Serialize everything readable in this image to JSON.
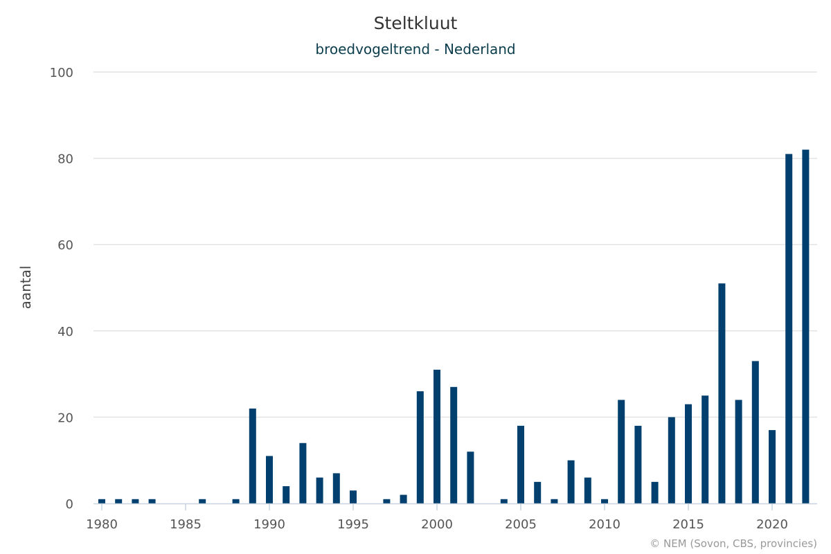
{
  "colors": {
    "bar": "#003f6e"
  },
  "chart_data": {
    "type": "bar",
    "title": "Steltkluut",
    "subtitle": "broedvogeltrend - Nederland",
    "ylabel": "aantal",
    "xlabel": "",
    "ylim": [
      0,
      100
    ],
    "yticks": [
      0,
      20,
      40,
      60,
      80,
      100
    ],
    "xticks": [
      1980,
      1985,
      1990,
      1995,
      2000,
      2005,
      2010,
      2015,
      2020
    ],
    "grid": true,
    "legend": "none",
    "credits": "© NEM (Sovon, CBS, provincies)",
    "series": [
      {
        "x": [
          1980,
          1981,
          1982,
          1983,
          1984,
          1985,
          1986,
          1987,
          1988,
          1989,
          1990,
          1991,
          1992,
          1993,
          1994,
          1995,
          1996,
          1997,
          1998,
          1999,
          2000,
          2001,
          2002,
          2003,
          2004,
          2005,
          2006,
          2007,
          2008,
          2009,
          2010,
          2011,
          2012,
          2013,
          2014,
          2015,
          2016,
          2017,
          2018,
          2019,
          2020,
          2021,
          2022
        ],
        "values": [
          1,
          1,
          1,
          1,
          0,
          0,
          1,
          0,
          1,
          22,
          11,
          4,
          14,
          6,
          7,
          3,
          0,
          1,
          2,
          26,
          31,
          27,
          12,
          0,
          1,
          18,
          5,
          1,
          10,
          6,
          1,
          24,
          18,
          5,
          20,
          23,
          25,
          51,
          24,
          33,
          17,
          81,
          82
        ]
      }
    ]
  }
}
